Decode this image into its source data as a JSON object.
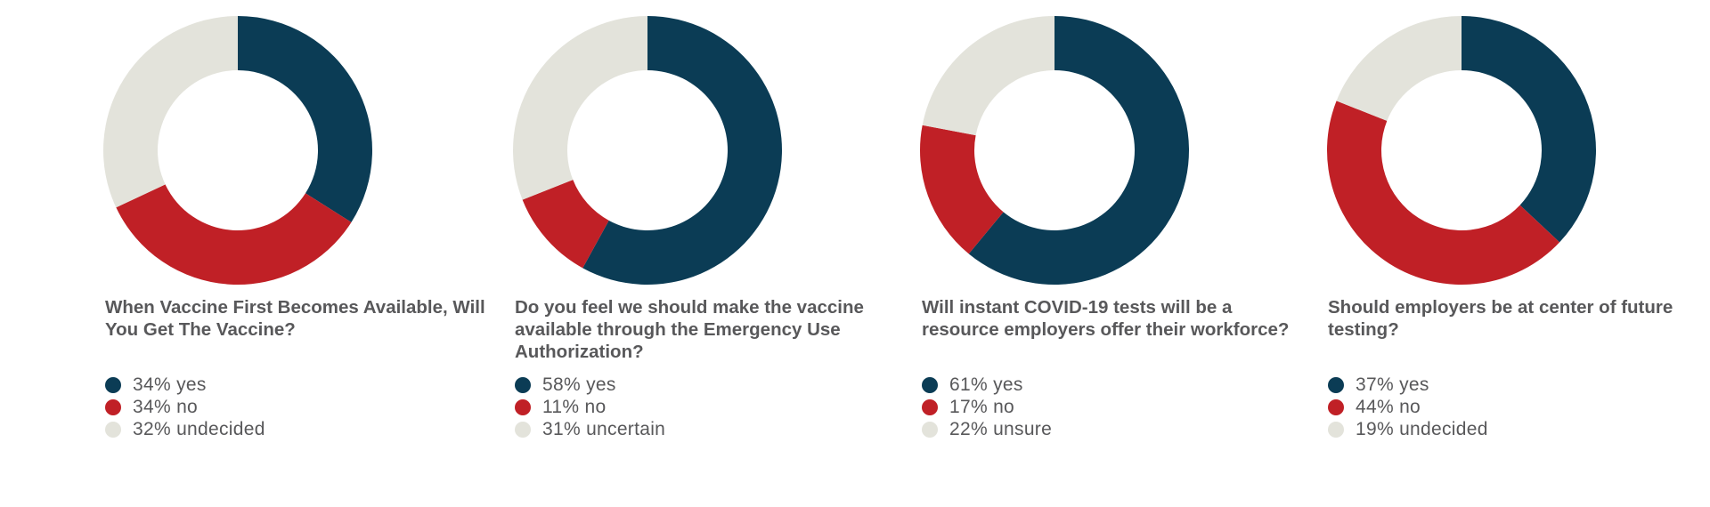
{
  "colors": {
    "yes": "#0b3c55",
    "no": "#c02026",
    "other": "#e3e3db",
    "text": "#58585a"
  },
  "chart_data": [
    {
      "type": "pie",
      "variant": "donut",
      "title": "When Vaccine First Becomes Available, Will You Get The Vaccine?",
      "slices": [
        {
          "label": "34% yes",
          "value": 34,
          "color": "#0b3c55"
        },
        {
          "label": "34% no",
          "value": 34,
          "color": "#c02026"
        },
        {
          "label": "32% undecided",
          "value": 32,
          "color": "#e3e3db"
        }
      ]
    },
    {
      "type": "pie",
      "variant": "donut",
      "title": "Do you feel we should make the vaccine available through the Emergency Use Authorization?",
      "slices": [
        {
          "label": "58% yes",
          "value": 58,
          "color": "#0b3c55"
        },
        {
          "label": "11% no",
          "value": 11,
          "color": "#c02026"
        },
        {
          "label": "31% uncertain",
          "value": 31,
          "color": "#e3e3db"
        }
      ]
    },
    {
      "type": "pie",
      "variant": "donut",
      "title": "Will instant COVID-19 tests will be a resource employers offer their workforce?",
      "slices": [
        {
          "label": "61% yes",
          "value": 61,
          "color": "#0b3c55"
        },
        {
          "label": "17% no",
          "value": 17,
          "color": "#c02026"
        },
        {
          "label": "22% unsure",
          "value": 22,
          "color": "#e3e3db"
        }
      ]
    },
    {
      "type": "pie",
      "variant": "donut",
      "title": "Should employers be at center of future testing?",
      "slices": [
        {
          "label": "37% yes",
          "value": 37,
          "color": "#0b3c55"
        },
        {
          "label": "44% no",
          "value": 44,
          "color": "#c02026"
        },
        {
          "label": "19% undecided",
          "value": 19,
          "color": "#e3e3db"
        }
      ]
    }
  ]
}
